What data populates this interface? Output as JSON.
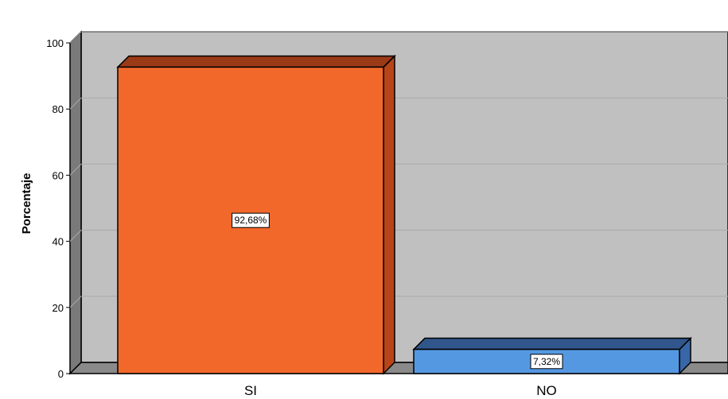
{
  "chart_data": {
    "type": "bar",
    "categories": [
      "SI",
      "NO"
    ],
    "values": [
      92.68,
      7.32
    ],
    "data_labels": [
      "92,68%",
      "7,32%"
    ],
    "ylabel": "Porcentaje",
    "xlabel": "",
    "ylim": [
      0,
      100
    ],
    "yticks": [
      "0",
      "20",
      "40",
      "60",
      "80",
      "100"
    ],
    "grid": true,
    "three_d": true,
    "colors": {
      "bars": [
        "#f2682b",
        "#5598e2"
      ],
      "bar_sides": [
        "#b8441a",
        "#3867a8"
      ],
      "bar_tops": [
        "#9a3a16",
        "#30568c"
      ],
      "wall": "#c0c0c0",
      "side_wall": "#7a7a7a",
      "floor": "#8a8a8a",
      "gridline": "#a9a9a9"
    }
  }
}
